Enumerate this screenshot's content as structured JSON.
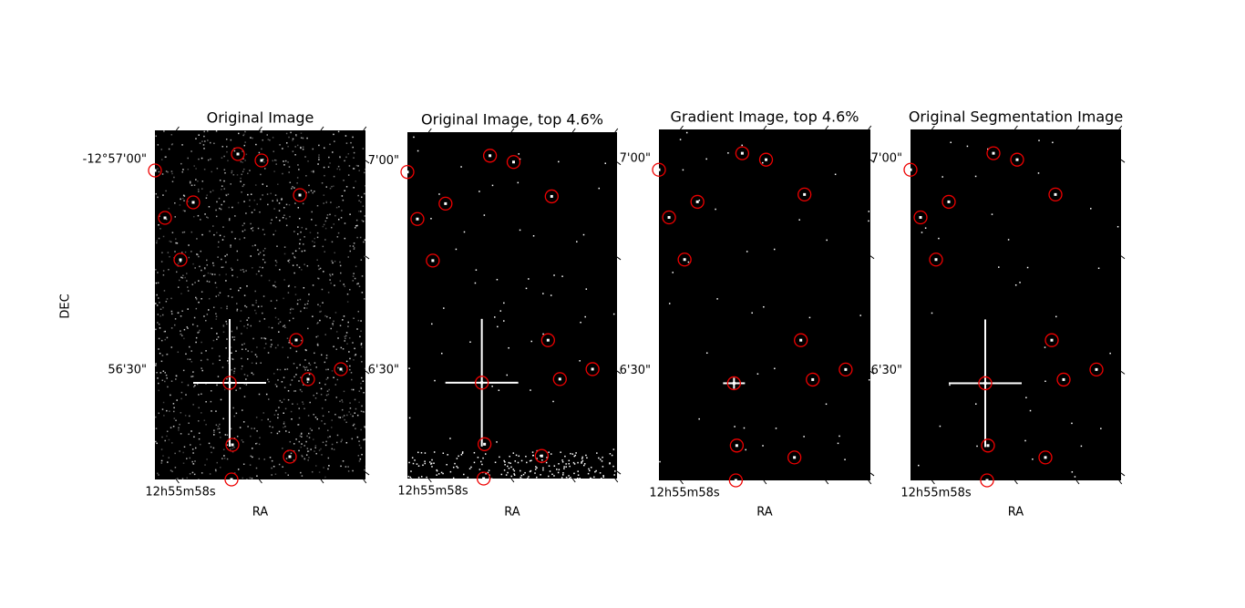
{
  "figure": {
    "panels": [
      {
        "title": "Original Image",
        "ytick_labels": [
          "-12°57'00\"",
          "56'30\""
        ],
        "xtick_label": "12h55m58s",
        "xlabel": "RA",
        "ylabel": "DEC"
      },
      {
        "title": "Original Image, top 4.6%",
        "ytick_labels": [
          "7'00\"",
          "6'30\""
        ],
        "xtick_label": "12h55m58s",
        "xlabel": "RA"
      },
      {
        "title": "Gradient Image, top 4.6%",
        "ytick_labels": [
          "7'00\"",
          "6'30\""
        ],
        "xtick_label": "12h55m58s",
        "xlabel": "RA"
      },
      {
        "title": "Original Segmentation Image",
        "ytick_labels": [
          "7'00\"",
          "6'30\""
        ],
        "xtick_label": "12h55m58s",
        "xlabel": "RA"
      }
    ]
  }
}
